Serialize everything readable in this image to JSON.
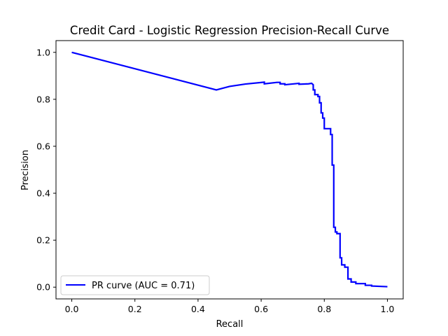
{
  "chart_data": {
    "type": "line",
    "title": "Credit Card - Logistic Regression Precision-Recall Curve",
    "xlabel": "Recall",
    "ylabel": "Precision",
    "xlim": [
      -0.05,
      1.05
    ],
    "ylim": [
      -0.05,
      1.05
    ],
    "xticks": [
      0.0,
      0.2,
      0.4,
      0.6,
      0.8,
      1.0
    ],
    "yticks": [
      0.0,
      0.2,
      0.4,
      0.6,
      0.8,
      1.0
    ],
    "xtick_labels": [
      "0.0",
      "0.2",
      "0.4",
      "0.6",
      "0.8",
      "1.0"
    ],
    "ytick_labels": [
      "0.0",
      "0.2",
      "0.4",
      "0.6",
      "0.8",
      "1.0"
    ],
    "grid": false,
    "legend_position": "lower-left",
    "series": [
      {
        "name": "PR curve (AUC = 0.71)",
        "color": "#0000ff",
        "x": [
          0.0,
          0.458,
          0.5,
          0.55,
          0.61,
          0.61,
          0.65,
          0.66,
          0.66,
          0.675,
          0.675,
          0.72,
          0.72,
          0.75,
          0.76,
          0.765,
          0.765,
          0.77,
          0.77,
          0.78,
          0.78,
          0.785,
          0.785,
          0.79,
          0.79,
          0.795,
          0.795,
          0.8,
          0.8,
          0.82,
          0.82,
          0.825,
          0.825,
          0.83,
          0.83,
          0.835,
          0.835,
          0.84,
          0.84,
          0.85,
          0.85,
          0.855,
          0.855,
          0.865,
          0.865,
          0.875,
          0.875,
          0.885,
          0.885,
          0.9,
          0.9,
          0.93,
          0.93,
          0.95,
          0.95,
          1.0
        ],
        "y": [
          1.0,
          0.84,
          0.855,
          0.865,
          0.873,
          0.866,
          0.872,
          0.872,
          0.866,
          0.866,
          0.862,
          0.868,
          0.864,
          0.866,
          0.868,
          0.862,
          0.84,
          0.84,
          0.82,
          0.82,
          0.812,
          0.812,
          0.785,
          0.785,
          0.742,
          0.742,
          0.72,
          0.72,
          0.675,
          0.675,
          0.65,
          0.65,
          0.52,
          0.52,
          0.255,
          0.255,
          0.235,
          0.235,
          0.228,
          0.228,
          0.125,
          0.125,
          0.095,
          0.095,
          0.085,
          0.085,
          0.035,
          0.035,
          0.022,
          0.022,
          0.015,
          0.015,
          0.008,
          0.008,
          0.005,
          0.002
        ]
      }
    ]
  }
}
